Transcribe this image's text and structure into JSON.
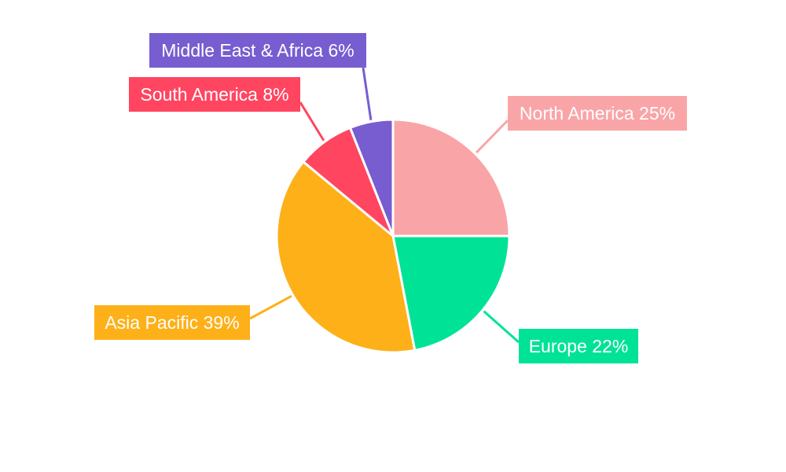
{
  "chart_data": {
    "type": "pie",
    "start_angle": "top, clockwise",
    "slices": [
      {
        "label": "North America",
        "value": 25,
        "text": "North America 25%",
        "color": "#F9A5A7"
      },
      {
        "label": "Europe",
        "value": 22,
        "text": "Europe 22%",
        "color": "#00E396"
      },
      {
        "label": "Asia Pacific",
        "value": 39,
        "text": "Asia Pacific 39%",
        "color": "#FEB019"
      },
      {
        "label": "South America",
        "value": 8,
        "text": "South America 8%",
        "color": "#FF4560"
      },
      {
        "label": "Middle East & Africa",
        "value": 6,
        "text": "Middle East & Africa 6%",
        "color": "#775DD0"
      }
    ]
  }
}
